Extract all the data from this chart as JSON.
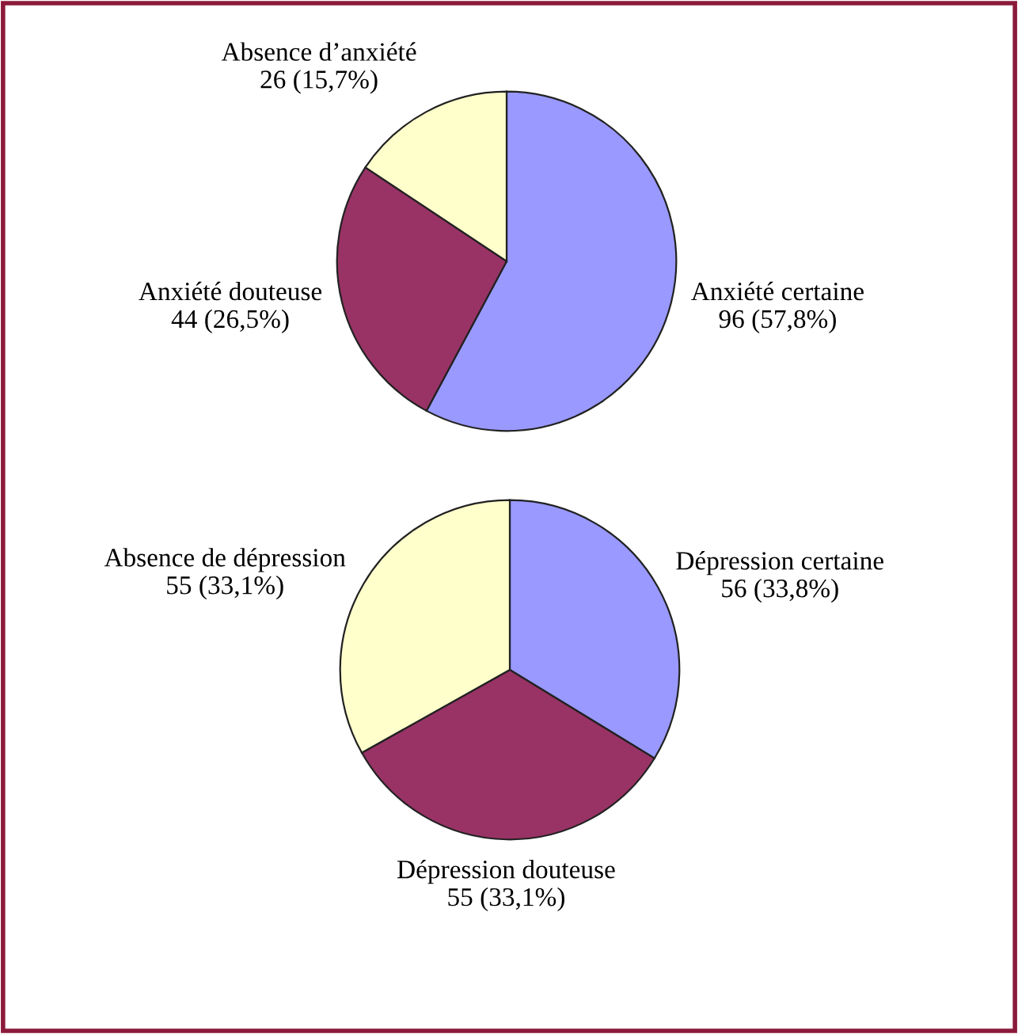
{
  "chart_data": [
    {
      "type": "pie",
      "categories": [
        "Anxiété certaine",
        "Anxiété douteuse",
        "Absence d’anxiété"
      ],
      "values": [
        96,
        44,
        26
      ],
      "value_labels": [
        "96 (57,8%)",
        "44 (26,5%)",
        "26 (15,7%)"
      ],
      "colors": [
        "#9999ff",
        "#993366",
        "#ffffcc"
      ]
    },
    {
      "type": "pie",
      "categories": [
        "Dépression certaine",
        "Dépression douteuse",
        "Absence de dépression"
      ],
      "values": [
        56,
        55,
        55
      ],
      "value_labels": [
        "56 (33,8%)",
        "55 (33,1%)",
        "55 (33,1%)"
      ],
      "colors": [
        "#9999ff",
        "#993366",
        "#ffffcc"
      ]
    }
  ]
}
